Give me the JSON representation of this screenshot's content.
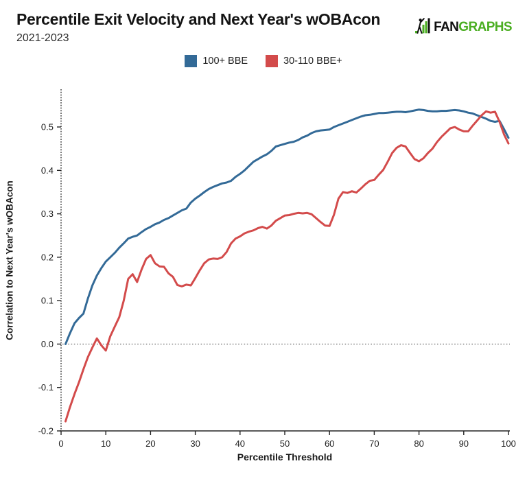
{
  "header": {
    "title": "Percentile Exit Velocity and Next Year's wOBAcon",
    "subtitle": "2021-2023",
    "logo": {
      "prefix": "FAN",
      "suffix": "GRAPHS",
      "green": "#4bae22",
      "black": "#101010"
    }
  },
  "chart_data": {
    "type": "line",
    "title": "Percentile Exit Velocity and Next Year's wOBAcon",
    "subtitle": "2021-2023",
    "xlabel": "Percentile Threshold",
    "ylabel": "Correlation to Next Year's wOBAcon",
    "xlim": [
      0,
      100
    ],
    "ylim": [
      -0.2,
      0.587
    ],
    "grid": "off",
    "zero_line": true,
    "legend_position": "top-center",
    "x_tick_values": [
      0,
      10,
      20,
      30,
      40,
      50,
      60,
      70,
      80,
      90,
      100
    ],
    "x_tick_labels": [
      "0",
      "10",
      "20",
      "30",
      "40",
      "50",
      "60",
      "70",
      "80",
      "90",
      "100"
    ],
    "y_tick_values": [
      -0.2,
      -0.1,
      0.0,
      0.1,
      0.2,
      0.3,
      0.4,
      0.5
    ],
    "y_tick_labels": [
      "-0.2",
      "-0.1",
      "0.0",
      "0.1",
      "0.2",
      "0.3",
      "0.4",
      "0.5"
    ],
    "x": [
      1,
      2,
      3,
      4,
      5,
      6,
      7,
      8,
      9,
      10,
      11,
      12,
      13,
      14,
      15,
      16,
      17,
      18,
      19,
      20,
      21,
      22,
      23,
      24,
      25,
      26,
      27,
      28,
      29,
      30,
      31,
      32,
      33,
      34,
      35,
      36,
      37,
      38,
      39,
      40,
      41,
      42,
      43,
      44,
      45,
      46,
      47,
      48,
      49,
      50,
      51,
      52,
      53,
      54,
      55,
      56,
      57,
      58,
      59,
      60,
      61,
      62,
      63,
      64,
      65,
      66,
      67,
      68,
      69,
      70,
      71,
      72,
      73,
      74,
      75,
      76,
      77,
      78,
      79,
      80,
      81,
      82,
      83,
      84,
      85,
      86,
      87,
      88,
      89,
      90,
      91,
      92,
      93,
      94,
      95,
      96,
      97,
      98,
      99,
      100
    ],
    "series": [
      {
        "name": "100+ BBE",
        "color": "#336a97",
        "values": [
          0.0,
          0.025,
          0.048,
          0.06,
          0.07,
          0.105,
          0.135,
          0.158,
          0.175,
          0.19,
          0.2,
          0.21,
          0.222,
          0.232,
          0.243,
          0.247,
          0.25,
          0.258,
          0.265,
          0.27,
          0.276,
          0.28,
          0.286,
          0.29,
          0.296,
          0.302,
          0.308,
          0.312,
          0.326,
          0.335,
          0.342,
          0.35,
          0.357,
          0.362,
          0.366,
          0.37,
          0.372,
          0.376,
          0.385,
          0.392,
          0.4,
          0.41,
          0.42,
          0.426,
          0.432,
          0.437,
          0.445,
          0.455,
          0.458,
          0.461,
          0.464,
          0.466,
          0.47,
          0.476,
          0.48,
          0.486,
          0.49,
          0.492,
          0.493,
          0.494,
          0.5,
          0.504,
          0.508,
          0.512,
          0.516,
          0.52,
          0.524,
          0.527,
          0.528,
          0.53,
          0.532,
          0.532,
          0.533,
          0.534,
          0.535,
          0.535,
          0.534,
          0.536,
          0.538,
          0.54,
          0.539,
          0.537,
          0.536,
          0.536,
          0.537,
          0.537,
          0.538,
          0.539,
          0.538,
          0.536,
          0.533,
          0.531,
          0.527,
          0.523,
          0.519,
          0.514,
          0.512,
          0.514,
          0.495,
          0.475
        ]
      },
      {
        "name": "30-110 BBE+",
        "color": "#d34b4b",
        "values": [
          -0.178,
          -0.145,
          -0.115,
          -0.088,
          -0.058,
          -0.03,
          -0.008,
          0.013,
          -0.003,
          -0.015,
          0.018,
          0.04,
          0.062,
          0.1,
          0.15,
          0.161,
          0.143,
          0.172,
          0.196,
          0.205,
          0.186,
          0.179,
          0.178,
          0.163,
          0.155,
          0.136,
          0.133,
          0.137,
          0.135,
          0.152,
          0.17,
          0.186,
          0.195,
          0.197,
          0.196,
          0.2,
          0.212,
          0.232,
          0.243,
          0.248,
          0.255,
          0.259,
          0.262,
          0.267,
          0.27,
          0.266,
          0.273,
          0.284,
          0.29,
          0.296,
          0.297,
          0.3,
          0.302,
          0.301,
          0.302,
          0.299,
          0.29,
          0.281,
          0.273,
          0.272,
          0.298,
          0.335,
          0.35,
          0.348,
          0.352,
          0.349,
          0.358,
          0.368,
          0.376,
          0.378,
          0.39,
          0.401,
          0.42,
          0.44,
          0.452,
          0.458,
          0.455,
          0.44,
          0.426,
          0.421,
          0.428,
          0.44,
          0.45,
          0.465,
          0.477,
          0.487,
          0.497,
          0.5,
          0.494,
          0.49,
          0.49,
          0.503,
          0.515,
          0.527,
          0.536,
          0.533,
          0.535,
          0.512,
          0.483,
          0.462
        ]
      }
    ]
  }
}
